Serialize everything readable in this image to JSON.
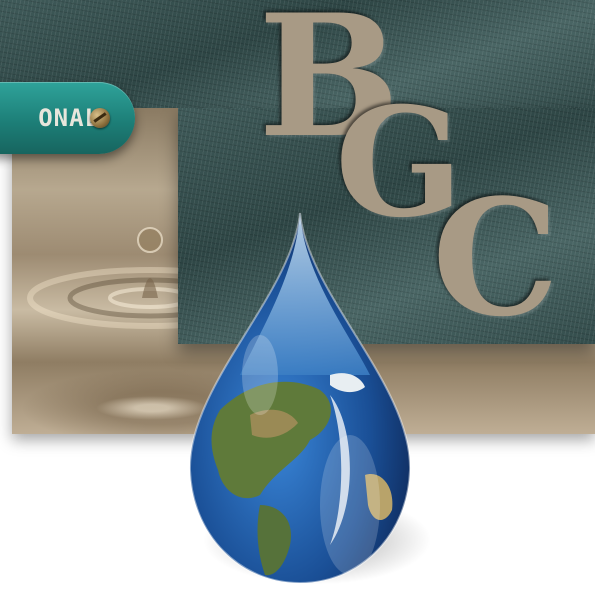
{
  "logo": {
    "letters": [
      "B",
      "G",
      "C"
    ],
    "tag_text": "ONAL"
  },
  "icons": {
    "droplet": "earth-water-droplet-icon",
    "screw": "screw-icon"
  },
  "colors": {
    "slate": "#3f5a59",
    "letter": "#a89a85",
    "tag": "#1d7f78",
    "water": "#a8967b",
    "ocean": "#1f5fa8"
  }
}
